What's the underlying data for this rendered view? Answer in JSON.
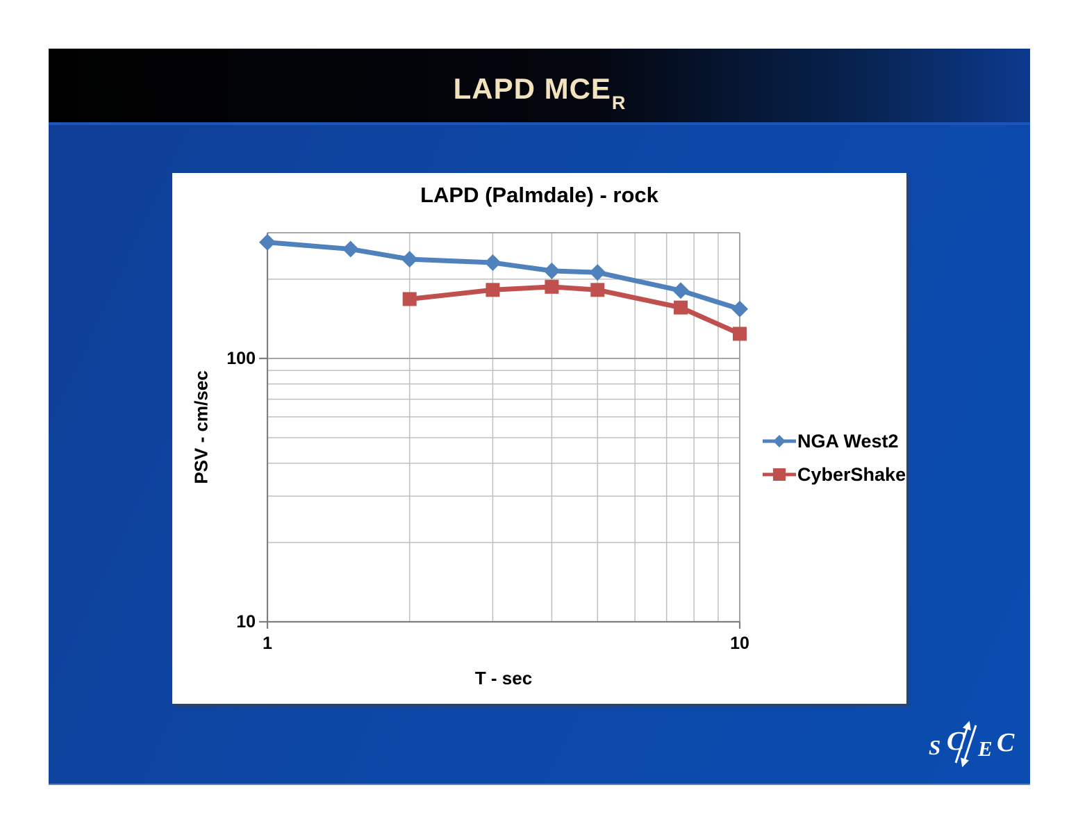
{
  "slide": {
    "title": "LAPD MCE",
    "title_subscript": "R",
    "colors": {
      "body_blue_left": "#0f3e95",
      "body_blue_right": "#0a4cb0",
      "header_black": "#010101",
      "header_navy_right": "#0d3a8e",
      "title_text": "#F2E3BE"
    }
  },
  "logo": {
    "name": "SCEC",
    "letters": [
      "S",
      "C",
      "E",
      "C"
    ],
    "color": "#ffffff"
  },
  "chart_data": {
    "type": "line",
    "title": "LAPD (Palmdale) - rock",
    "xlabel": "T - sec",
    "ylabel": "PSV - cm/sec",
    "x_scale": "log",
    "y_scale": "log",
    "xlim": [
      1,
      10
    ],
    "ylim": [
      10,
      300
    ],
    "x_ticks": [
      1,
      10
    ],
    "y_ticks": [
      100,
      10
    ],
    "x_tick_labels": [
      "1",
      "10"
    ],
    "y_tick_labels": [
      "100",
      "10"
    ],
    "x_minor_gridlines": [
      2,
      3,
      4,
      5,
      6,
      7,
      8,
      9
    ],
    "y_minor_gridlines": [
      20,
      30,
      40,
      50,
      60,
      70,
      80,
      90,
      200
    ],
    "grid": true,
    "legend_position": "right-middle",
    "grid_minor_color": "#bfbfbf",
    "grid_major_color": "#9a9a9a",
    "axis_color": "#7f7f7f",
    "series": [
      {
        "name": "NGA West2",
        "color": "#4F81BD",
        "marker": "diamond",
        "x": [
          1,
          1.5,
          2,
          3,
          4,
          5,
          7.5,
          10
        ],
        "y": [
          276,
          260,
          238,
          231,
          215,
          212,
          181,
          154
        ]
      },
      {
        "name": "CyberShake",
        "color": "#C0504D",
        "marker": "square",
        "x": [
          2,
          3,
          4,
          5,
          7.5,
          10
        ],
        "y": [
          168,
          182,
          187,
          182,
          156,
          124
        ]
      }
    ]
  }
}
